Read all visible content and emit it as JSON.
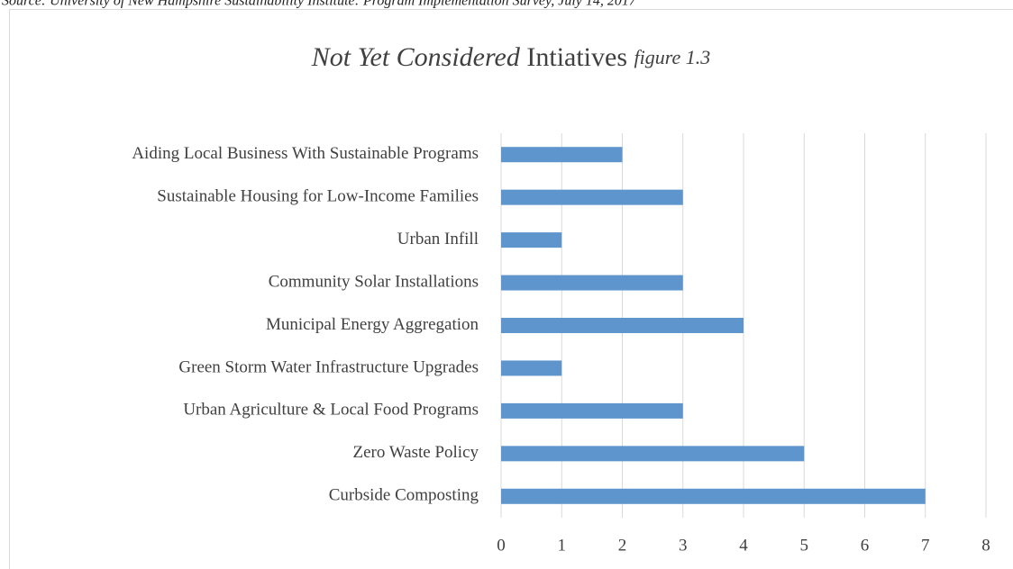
{
  "source": "Source: University of New Hampshire Sustainability Institute: Program Implementation Survey, July 14, 2017",
  "chart_data": {
    "type": "bar",
    "orientation": "horizontal",
    "title": [
      "Not Yet Considered",
      "Intiatives",
      "figure 1.3"
    ],
    "categories": [
      "Aiding Local Business With Sustainable Programs",
      "Sustainable Housing for Low-Income Families",
      "Urban Infill",
      "Community Solar Installations",
      "Municipal Energy Aggregation",
      "Green Storm Water Infrastructure Upgrades",
      "Urban Agriculture & Local Food Programs",
      "Zero Waste Policy",
      "Curbside Composting"
    ],
    "values": [
      2,
      3,
      1,
      3,
      4,
      1,
      3,
      5,
      7
    ],
    "color": "#5f95cd",
    "xlim": [
      0,
      8
    ],
    "xticks": [
      0,
      1,
      2,
      3,
      4,
      5,
      6,
      7,
      8
    ],
    "grid": true
  }
}
